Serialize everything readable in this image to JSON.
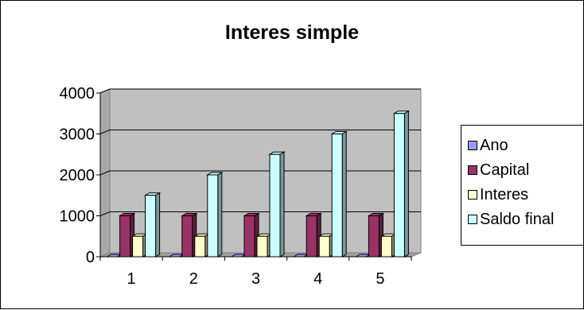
{
  "chart_data": {
    "type": "bar",
    "title": "Interes simple",
    "categories": [
      "1",
      "2",
      "3",
      "4",
      "5"
    ],
    "series": [
      {
        "name": "Ano",
        "values": [
          0,
          0,
          0,
          0,
          0
        ],
        "color": "#9999ff"
      },
      {
        "name": "Capital",
        "values": [
          1000,
          1000,
          1000,
          1000,
          1000
        ],
        "color": "#993366"
      },
      {
        "name": "Interes",
        "values": [
          500,
          500,
          500,
          500,
          500
        ],
        "color": "#ffffcc"
      },
      {
        "name": "Saldo final",
        "values": [
          1500,
          2000,
          2500,
          3000,
          3500
        ],
        "color": "#ccffff"
      }
    ],
    "ylim": [
      0,
      4000
    ],
    "yticks": [
      "0",
      "1000",
      "2000",
      "3000",
      "4000"
    ],
    "grid": true,
    "style": "3d-clustered-column",
    "wall_color": "#c0c0c0",
    "legend_position": "right"
  }
}
